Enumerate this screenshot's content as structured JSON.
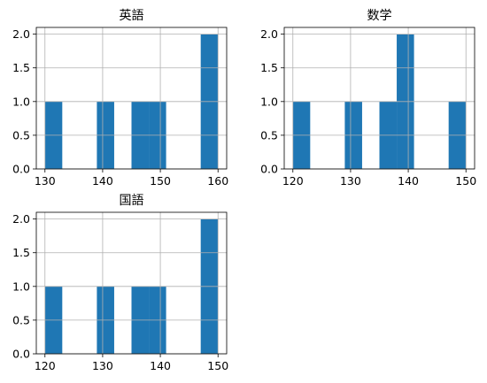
{
  "chart_data": [
    {
      "type": "bar",
      "title": "英語",
      "bar_color": "#1f77b4",
      "grid": true,
      "bins": [
        {
          "x0": 130,
          "x1": 133,
          "count": 1
        },
        {
          "x0": 133,
          "x1": 136,
          "count": 0
        },
        {
          "x0": 136,
          "x1": 139,
          "count": 0
        },
        {
          "x0": 139,
          "x1": 142,
          "count": 1
        },
        {
          "x0": 142,
          "x1": 145,
          "count": 0
        },
        {
          "x0": 145,
          "x1": 148,
          "count": 1
        },
        {
          "x0": 148,
          "x1": 151,
          "count": 1
        },
        {
          "x0": 151,
          "x1": 154,
          "count": 0
        },
        {
          "x0": 154,
          "x1": 157,
          "count": 0
        },
        {
          "x0": 157,
          "x1": 160,
          "count": 2
        }
      ],
      "xlim": [
        128.5,
        161.5
      ],
      "ylim": [
        0,
        2.1
      ],
      "xticks": [
        130,
        140,
        150,
        160
      ],
      "yticks": [
        0.0,
        0.5,
        1.0,
        1.5,
        2.0
      ],
      "xtick_labels": [
        "130",
        "140",
        "150",
        "160"
      ],
      "ytick_labels": [
        "0.0",
        "0.5",
        "1.0",
        "1.5",
        "2.0"
      ]
    },
    {
      "type": "bar",
      "title": "数学",
      "bar_color": "#1f77b4",
      "grid": true,
      "bins": [
        {
          "x0": 120,
          "x1": 123,
          "count": 1
        },
        {
          "x0": 123,
          "x1": 126,
          "count": 0
        },
        {
          "x0": 126,
          "x1": 129,
          "count": 0
        },
        {
          "x0": 129,
          "x1": 132,
          "count": 1
        },
        {
          "x0": 132,
          "x1": 135,
          "count": 0
        },
        {
          "x0": 135,
          "x1": 138,
          "count": 1
        },
        {
          "x0": 138,
          "x1": 141,
          "count": 2
        },
        {
          "x0": 141,
          "x1": 144,
          "count": 0
        },
        {
          "x0": 144,
          "x1": 147,
          "count": 0
        },
        {
          "x0": 147,
          "x1": 150,
          "count": 1
        }
      ],
      "xlim": [
        118.5,
        151.5
      ],
      "ylim": [
        0,
        2.1
      ],
      "xticks": [
        120,
        130,
        140,
        150
      ],
      "yticks": [
        0.0,
        0.5,
        1.0,
        1.5,
        2.0
      ],
      "xtick_labels": [
        "120",
        "130",
        "140",
        "150"
      ],
      "ytick_labels": [
        "0.0",
        "0.5",
        "1.0",
        "1.5",
        "2.0"
      ]
    },
    {
      "type": "bar",
      "title": "国語",
      "bar_color": "#1f77b4",
      "grid": true,
      "bins": [
        {
          "x0": 120,
          "x1": 123,
          "count": 1
        },
        {
          "x0": 123,
          "x1": 126,
          "count": 0
        },
        {
          "x0": 126,
          "x1": 129,
          "count": 0
        },
        {
          "x0": 129,
          "x1": 132,
          "count": 1
        },
        {
          "x0": 132,
          "x1": 135,
          "count": 0
        },
        {
          "x0": 135,
          "x1": 138,
          "count": 1
        },
        {
          "x0": 138,
          "x1": 141,
          "count": 1
        },
        {
          "x0": 141,
          "x1": 144,
          "count": 0
        },
        {
          "x0": 144,
          "x1": 147,
          "count": 0
        },
        {
          "x0": 147,
          "x1": 150,
          "count": 2
        }
      ],
      "xlim": [
        118.5,
        151.5
      ],
      "ylim": [
        0,
        2.1
      ],
      "xticks": [
        120,
        130,
        140,
        150
      ],
      "yticks": [
        0.0,
        0.5,
        1.0,
        1.5,
        2.0
      ],
      "xtick_labels": [
        "120",
        "130",
        "140",
        "150"
      ],
      "ytick_labels": [
        "0.0",
        "0.5",
        "1.0",
        "1.5",
        "2.0"
      ]
    }
  ]
}
